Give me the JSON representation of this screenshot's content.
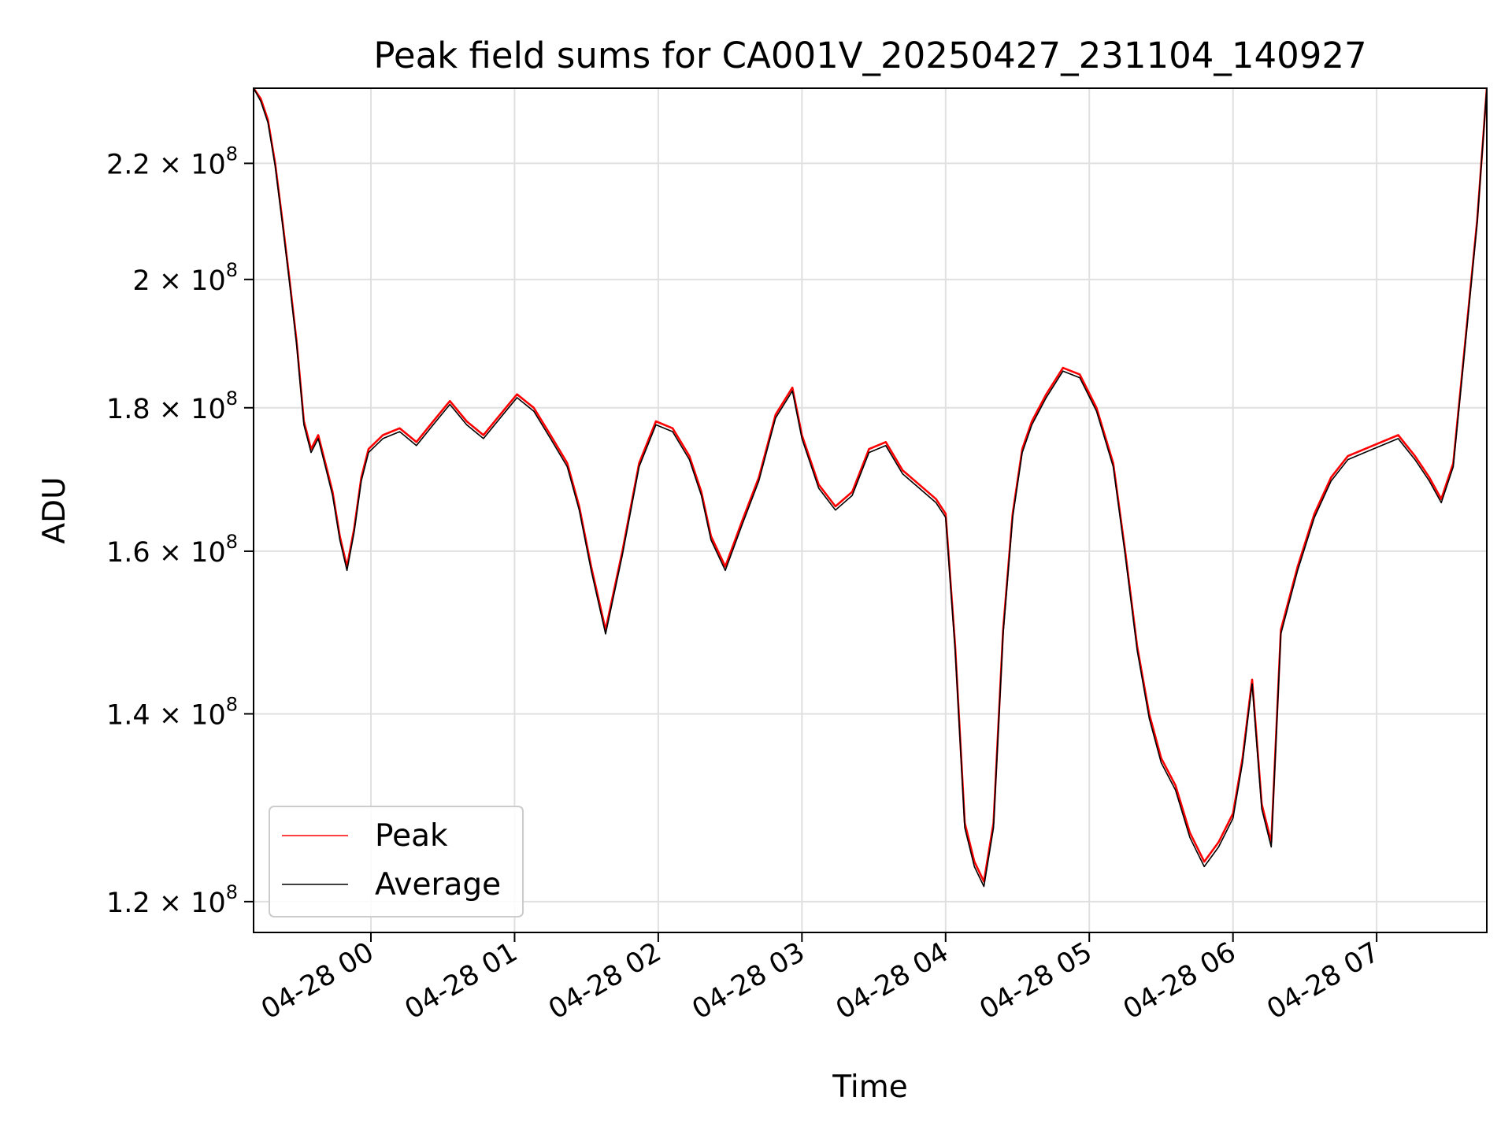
{
  "chart_data": {
    "type": "line",
    "title": "Peak field sums for CA001V_20250427_231104_140927",
    "xlabel": "Time",
    "ylabel": "ADU",
    "y_scale": "log",
    "ylim": [
      117000000,
      234000000
    ],
    "xlim": [
      "2025-04-27 23:11",
      "2025-04-28 07:46"
    ],
    "grid": true,
    "legend_position": "lower-left",
    "x_ticks": [
      {
        "t": "2025-04-28 00:00",
        "label": "04-28 00"
      },
      {
        "t": "2025-04-28 01:00",
        "label": "04-28 01"
      },
      {
        "t": "2025-04-28 02:00",
        "label": "04-28 02"
      },
      {
        "t": "2025-04-28 03:00",
        "label": "04-28 03"
      },
      {
        "t": "2025-04-28 04:00",
        "label": "04-28 04"
      },
      {
        "t": "2025-04-28 05:00",
        "label": "04-28 05"
      },
      {
        "t": "2025-04-28 06:00",
        "label": "04-28 06"
      },
      {
        "t": "2025-04-28 07:00",
        "label": "04-28 07"
      }
    ],
    "y_ticks": [
      {
        "value": 120000000,
        "mantissa": "1.2",
        "exp": "8"
      },
      {
        "value": 140000000,
        "mantissa": "1.4",
        "exp": "8"
      },
      {
        "value": 160000000,
        "mantissa": "1.6",
        "exp": "8"
      },
      {
        "value": 180000000,
        "mantissa": "1.8",
        "exp": "8"
      },
      {
        "value": 200000000,
        "mantissa": "2",
        "exp": "8"
      },
      {
        "value": 220000000,
        "mantissa": "2.2",
        "exp": "8"
      }
    ],
    "tick_times_symbol": "×",
    "tick_base": "10",
    "series": [
      {
        "name": "Peak",
        "color": "#ff0000",
        "x": [
          "2025-04-27 23:11",
          "2025-04-27 23:14",
          "2025-04-27 23:17",
          "2025-04-27 23:20",
          "2025-04-27 23:23",
          "2025-04-27 23:26",
          "2025-04-27 23:29",
          "2025-04-27 23:32",
          "2025-04-27 23:35",
          "2025-04-27 23:38",
          "2025-04-27 23:41",
          "2025-04-27 23:44",
          "2025-04-27 23:47",
          "2025-04-27 23:50",
          "2025-04-27 23:53",
          "2025-04-27 23:56",
          "2025-04-27 23:59",
          "2025-04-28 00:05",
          "2025-04-28 00:12",
          "2025-04-28 00:19",
          "2025-04-28 00:26",
          "2025-04-28 00:33",
          "2025-04-28 00:40",
          "2025-04-28 00:47",
          "2025-04-28 00:54",
          "2025-04-28 01:01",
          "2025-04-28 01:08",
          "2025-04-28 01:15",
          "2025-04-28 01:22",
          "2025-04-28 01:27",
          "2025-04-28 01:32",
          "2025-04-28 01:38",
          "2025-04-28 01:45",
          "2025-04-28 01:52",
          "2025-04-28 01:59",
          "2025-04-28 02:06",
          "2025-04-28 02:13",
          "2025-04-28 02:18",
          "2025-04-28 02:22",
          "2025-04-28 02:28",
          "2025-04-28 02:35",
          "2025-04-28 02:42",
          "2025-04-28 02:49",
          "2025-04-28 02:56",
          "2025-04-28 03:00",
          "2025-04-28 03:07",
          "2025-04-28 03:14",
          "2025-04-28 03:21",
          "2025-04-28 03:28",
          "2025-04-28 03:35",
          "2025-04-28 03:42",
          "2025-04-28 03:49",
          "2025-04-28 03:56",
          "2025-04-28 04:00",
          "2025-04-28 04:04",
          "2025-04-28 04:08",
          "2025-04-28 04:12",
          "2025-04-28 04:16",
          "2025-04-28 04:20",
          "2025-04-28 04:24",
          "2025-04-28 04:28",
          "2025-04-28 04:32",
          "2025-04-28 04:36",
          "2025-04-28 04:42",
          "2025-04-28 04:49",
          "2025-04-28 04:56",
          "2025-04-28 05:03",
          "2025-04-28 05:10",
          "2025-04-28 05:15",
          "2025-04-28 05:20",
          "2025-04-28 05:25",
          "2025-04-28 05:30",
          "2025-04-28 05:36",
          "2025-04-28 05:42",
          "2025-04-28 05:48",
          "2025-04-28 05:54",
          "2025-04-28 06:00",
          "2025-04-28 06:04",
          "2025-04-28 06:08",
          "2025-04-28 06:12",
          "2025-04-28 06:16",
          "2025-04-28 06:20",
          "2025-04-28 06:27",
          "2025-04-28 06:34",
          "2025-04-28 06:41",
          "2025-04-28 06:48",
          "2025-04-28 06:55",
          "2025-04-28 07:02",
          "2025-04-28 07:09",
          "2025-04-28 07:16",
          "2025-04-28 07:22",
          "2025-04-28 07:27",
          "2025-04-28 07:32",
          "2025-04-28 07:37",
          "2025-04-28 07:42",
          "2025-04-28 07:46"
        ],
        "values": [
          234000000,
          232000000,
          228000000,
          220000000,
          210000000,
          200000000,
          190000000,
          178000000,
          174000000,
          176000000,
          172000000,
          168000000,
          162000000,
          158000000,
          163000000,
          170000000,
          174000000,
          176000000,
          177000000,
          175000000,
          178000000,
          181000000,
          178000000,
          176000000,
          179000000,
          182000000,
          180000000,
          176000000,
          172000000,
          166000000,
          158000000,
          150000000,
          160000000,
          172000000,
          178000000,
          177000000,
          173000000,
          168000000,
          162000000,
          158000000,
          164000000,
          170000000,
          179000000,
          183000000,
          176000000,
          169000000,
          166000000,
          168000000,
          174000000,
          175000000,
          171000000,
          169000000,
          167000000,
          165000000,
          148000000,
          128000000,
          124000000,
          122000000,
          128000000,
          150000000,
          165000000,
          174000000,
          178000000,
          182000000,
          186000000,
          185000000,
          180000000,
          172000000,
          160000000,
          148000000,
          140000000,
          135000000,
          132000000,
          127000000,
          124000000,
          126000000,
          129000000,
          135000000,
          144000000,
          130000000,
          126000000,
          150000000,
          158000000,
          165000000,
          170000000,
          173000000,
          174000000,
          175000000,
          176000000,
          173000000,
          170000000,
          167000000,
          172000000,
          190000000,
          210000000,
          234000000
        ]
      },
      {
        "name": "Average",
        "color": "#000000",
        "x": [
          "2025-04-27 23:11",
          "2025-04-27 23:14",
          "2025-04-27 23:17",
          "2025-04-27 23:20",
          "2025-04-27 23:23",
          "2025-04-27 23:26",
          "2025-04-27 23:29",
          "2025-04-27 23:32",
          "2025-04-27 23:35",
          "2025-04-27 23:38",
          "2025-04-27 23:41",
          "2025-04-27 23:44",
          "2025-04-27 23:47",
          "2025-04-27 23:50",
          "2025-04-27 23:53",
          "2025-04-27 23:56",
          "2025-04-27 23:59",
          "2025-04-28 00:05",
          "2025-04-28 00:12",
          "2025-04-28 00:19",
          "2025-04-28 00:26",
          "2025-04-28 00:33",
          "2025-04-28 00:40",
          "2025-04-28 00:47",
          "2025-04-28 00:54",
          "2025-04-28 01:01",
          "2025-04-28 01:08",
          "2025-04-28 01:15",
          "2025-04-28 01:22",
          "2025-04-28 01:27",
          "2025-04-28 01:32",
          "2025-04-28 01:38",
          "2025-04-28 01:45",
          "2025-04-28 01:52",
          "2025-04-28 01:59",
          "2025-04-28 02:06",
          "2025-04-28 02:13",
          "2025-04-28 02:18",
          "2025-04-28 02:22",
          "2025-04-28 02:28",
          "2025-04-28 02:35",
          "2025-04-28 02:42",
          "2025-04-28 02:49",
          "2025-04-28 02:56",
          "2025-04-28 03:00",
          "2025-04-28 03:07",
          "2025-04-28 03:14",
          "2025-04-28 03:21",
          "2025-04-28 03:28",
          "2025-04-28 03:35",
          "2025-04-28 03:42",
          "2025-04-28 03:49",
          "2025-04-28 03:56",
          "2025-04-28 04:00",
          "2025-04-28 04:04",
          "2025-04-28 04:08",
          "2025-04-28 04:12",
          "2025-04-28 04:16",
          "2025-04-28 04:20",
          "2025-04-28 04:24",
          "2025-04-28 04:28",
          "2025-04-28 04:32",
          "2025-04-28 04:36",
          "2025-04-28 04:42",
          "2025-04-28 04:49",
          "2025-04-28 04:56",
          "2025-04-28 05:03",
          "2025-04-28 05:10",
          "2025-04-28 05:15",
          "2025-04-28 05:20",
          "2025-04-28 05:25",
          "2025-04-28 05:30",
          "2025-04-28 05:36",
          "2025-04-28 05:42",
          "2025-04-28 05:48",
          "2025-04-28 05:54",
          "2025-04-28 06:00",
          "2025-04-28 06:04",
          "2025-04-28 06:08",
          "2025-04-28 06:12",
          "2025-04-28 06:16",
          "2025-04-28 06:20",
          "2025-04-28 06:27",
          "2025-04-28 06:34",
          "2025-04-28 06:41",
          "2025-04-28 06:48",
          "2025-04-28 06:55",
          "2025-04-28 07:02",
          "2025-04-28 07:09",
          "2025-04-28 07:16",
          "2025-04-28 07:22",
          "2025-04-28 07:27",
          "2025-04-28 07:32",
          "2025-04-28 07:37",
          "2025-04-28 07:42",
          "2025-04-28 07:46"
        ],
        "values": [
          234000000,
          231500000,
          227500000,
          219500000,
          209500000,
          199500000,
          189500000,
          177500000,
          173500000,
          175500000,
          171500000,
          167500000,
          161500000,
          157500000,
          162500000,
          169500000,
          173500000,
          175500000,
          176500000,
          174500000,
          177500000,
          180500000,
          177500000,
          175500000,
          178500000,
          181500000,
          179500000,
          175500000,
          171500000,
          165500000,
          157500000,
          149500000,
          159500000,
          171500000,
          177500000,
          176500000,
          172500000,
          167500000,
          161500000,
          157500000,
          163500000,
          169500000,
          178500000,
          182500000,
          175500000,
          168500000,
          165500000,
          167500000,
          173500000,
          174500000,
          170500000,
          168500000,
          166500000,
          164500000,
          147500000,
          127500000,
          123500000,
          121500000,
          127500000,
          149500000,
          164500000,
          173500000,
          177500000,
          181500000,
          185500000,
          184500000,
          179500000,
          171500000,
          159500000,
          147500000,
          139500000,
          134500000,
          131500000,
          126500000,
          123500000,
          125500000,
          128500000,
          134500000,
          143500000,
          129500000,
          125500000,
          149500000,
          157500000,
          164500000,
          169500000,
          172500000,
          173500000,
          174500000,
          175500000,
          172500000,
          169500000,
          166500000,
          171500000,
          189500000,
          209500000,
          234000000
        ]
      }
    ]
  }
}
